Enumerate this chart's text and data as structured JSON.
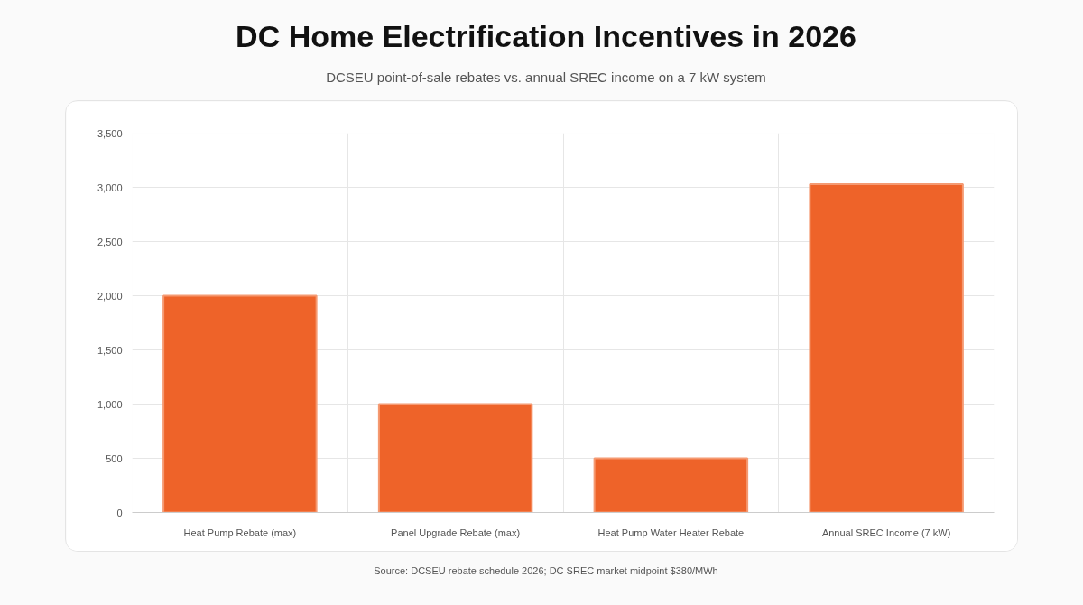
{
  "chart_data": {
    "type": "bar",
    "title": "DC Home Electrification Incentives in 2026",
    "subtitle": "DCSEU point-of-sale rebates vs. annual SREC income on a 7 kW system",
    "categories": [
      "Heat Pump Rebate (max)",
      "Panel Upgrade Rebate (max)",
      "Heat Pump Water Heater Rebate",
      "Annual SREC Income (7 kW)"
    ],
    "values": [
      2000,
      1000,
      500,
      3030
    ],
    "color": "#ee6329",
    "ylim": [
      0,
      3500
    ],
    "yticks": [
      0,
      {
        "value": 500,
        "label": "500"
      },
      {
        "value": 1000,
        "label": "1,000"
      },
      {
        "value": 1500,
        "label": "1,500"
      },
      {
        "value": 2000,
        "label": "2,000"
      },
      {
        "value": 2500,
        "label": "2,500"
      },
      {
        "value": 3000,
        "label": "3,000"
      },
      {
        "value": 3500,
        "label": "3,500"
      }
    ],
    "grid": true,
    "annotations": [
      "Source: DCSEU rebate schedule 2026; DC SREC market midpoint $380/MWh"
    ]
  }
}
